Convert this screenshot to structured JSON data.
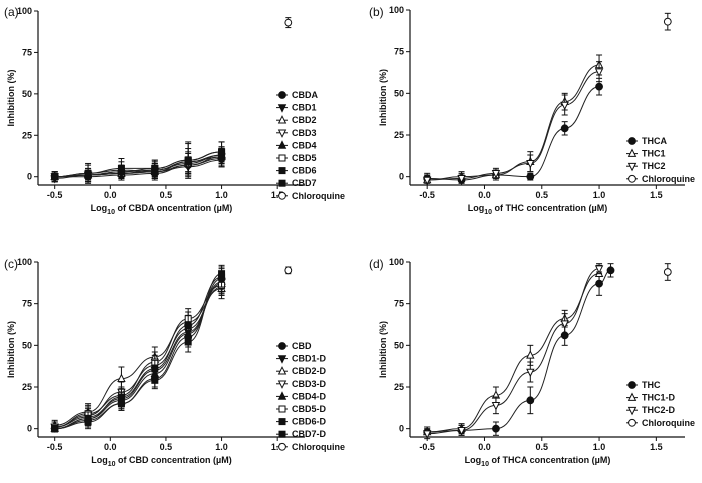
{
  "chart_data": [
    {
      "type": "line",
      "panel": "(a)",
      "title": "",
      "xlabel_prefix": "Log",
      "xlabel_sub": "10",
      "xlabel_suffix": " of  CBDA oncentration (µM)",
      "ylabel": "Inhibition (%)",
      "xlim": [
        -0.65,
        1.75
      ],
      "ylim": [
        -5,
        100
      ],
      "xticks": [
        "-0.5",
        "0.0",
        "0.5",
        "1.0",
        "1.5"
      ],
      "yticks": [
        "0",
        "25",
        "50",
        "75",
        "100"
      ],
      "x": [
        -0.5,
        -0.2,
        0.1,
        0.4,
        0.7,
        1.0
      ],
      "series": [
        {
          "name": "CBDA",
          "marker": "circle-filled",
          "values": [
            0,
            0,
            1,
            2,
            7,
            11
          ],
          "err": [
            2,
            3,
            2,
            3,
            4,
            5
          ]
        },
        {
          "name": "CBD1",
          "marker": "triangle-down-filled",
          "values": [
            0,
            1,
            2,
            3,
            6,
            10
          ],
          "err": [
            2,
            4,
            3,
            4,
            5,
            4
          ]
        },
        {
          "name": "CBD2",
          "marker": "triangle-up-open",
          "values": [
            0,
            1,
            2,
            4,
            8,
            13
          ],
          "err": [
            3,
            3,
            4,
            5,
            6,
            5
          ]
        },
        {
          "name": "CBD3",
          "marker": "triangle-down-open",
          "values": [
            -1,
            1,
            2,
            3,
            7,
            12
          ],
          "err": [
            2,
            3,
            4,
            4,
            5,
            5
          ]
        },
        {
          "name": "CBD4",
          "marker": "triangle-up-filled",
          "values": [
            0,
            2,
            4,
            3,
            9,
            12
          ],
          "err": [
            3,
            5,
            5,
            5,
            8,
            6
          ]
        },
        {
          "name": "CBD5",
          "marker": "square-open",
          "values": [
            0,
            1,
            3,
            5,
            10,
            15
          ],
          "err": [
            3,
            4,
            4,
            5,
            10,
            6
          ]
        },
        {
          "name": "CBD6",
          "marker": "square-filled",
          "values": [
            0,
            1,
            3,
            4,
            9,
            13
          ],
          "err": [
            2,
            3,
            3,
            4,
            6,
            5
          ]
        },
        {
          "name": "CBD7",
          "marker": "square-filled",
          "values": [
            0,
            2,
            5,
            5,
            10,
            15
          ],
          "err": [
            3,
            6,
            6,
            5,
            11,
            6
          ]
        }
      ],
      "reference": {
        "name": "Chloroquine",
        "marker": "circle-open",
        "x": 1.6,
        "value": 93,
        "err": 3
      },
      "legend_position": "right"
    },
    {
      "type": "line",
      "panel": "(b)",
      "title": "",
      "xlabel_prefix": "Log",
      "xlabel_sub": "10",
      "xlabel_suffix": " of  THC concentration (µM)",
      "ylabel": "Inhibition (%)",
      "xlim": [
        -0.65,
        1.75
      ],
      "ylim": [
        -5,
        100
      ],
      "xticks": [
        "-0.5",
        "0.0",
        "0.5",
        "1.0",
        "1.5"
      ],
      "yticks": [
        "0",
        "25",
        "50",
        "75",
        "100"
      ],
      "x": [
        -0.5,
        -0.2,
        0.1,
        0.4,
        0.7,
        1.0
      ],
      "series": [
        {
          "name": "THCA",
          "marker": "circle-filled",
          "values": [
            -1,
            -2,
            1,
            0,
            29,
            54
          ],
          "err": [
            3,
            3,
            2,
            2,
            4,
            5
          ]
        },
        {
          "name": "THC1",
          "marker": "triangle-up-open",
          "values": [
            -2,
            0,
            1,
            9,
            45,
            67
          ],
          "err": [
            3,
            3,
            3,
            6,
            5,
            6
          ]
        },
        {
          "name": "THC2",
          "marker": "triangle-down-open",
          "values": [
            -2,
            -1,
            2,
            8,
            43,
            63
          ],
          "err": [
            3,
            3,
            3,
            5,
            6,
            6
          ]
        }
      ],
      "reference": {
        "name": "Chloroquine",
        "marker": "circle-open",
        "x": 1.6,
        "value": 93,
        "err": 5
      },
      "legend_position": "right"
    },
    {
      "type": "line",
      "panel": "(c)",
      "title": "",
      "xlabel_prefix": "Log",
      "xlabel_sub": "10",
      "xlabel_suffix": " of  CBD concentration (µM)",
      "ylabel": "Inhibition (%)",
      "xlim": [
        -0.65,
        1.75
      ],
      "ylim": [
        -5,
        100
      ],
      "xticks": [
        "-0.5",
        "0.0",
        "0.5",
        "1.0",
        "1.5"
      ],
      "yticks": [
        "0",
        "25",
        "50",
        "75",
        "100"
      ],
      "x": [
        -0.5,
        -0.2,
        0.1,
        0.4,
        0.7,
        1.0
      ],
      "series": [
        {
          "name": "CBD",
          "marker": "circle-filled",
          "values": [
            0,
            5,
            15,
            30,
            55,
            90
          ],
          "err": [
            2,
            4,
            4,
            5,
            6,
            6
          ]
        },
        {
          "name": "CBD1-D",
          "marker": "triangle-down-filled",
          "values": [
            1,
            7,
            18,
            35,
            58,
            88
          ],
          "err": [
            3,
            5,
            5,
            5,
            6,
            6
          ]
        },
        {
          "name": "CBD2-D",
          "marker": "triangle-up-open",
          "values": [
            2,
            10,
            30,
            43,
            64,
            84
          ],
          "err": [
            3,
            5,
            7,
            6,
            6,
            6
          ]
        },
        {
          "name": "CBD3-D",
          "marker": "triangle-down-open",
          "values": [
            1,
            8,
            22,
            38,
            60,
            85
          ],
          "err": [
            3,
            5,
            6,
            6,
            6,
            5
          ]
        },
        {
          "name": "CBD4-D",
          "marker": "triangle-up-filled",
          "values": [
            0,
            6,
            17,
            33,
            57,
            87
          ],
          "err": [
            2,
            4,
            5,
            5,
            6,
            6
          ]
        },
        {
          "name": "CBD5-D",
          "marker": "square-open",
          "values": [
            1,
            9,
            20,
            40,
            66,
            86
          ],
          "err": [
            3,
            5,
            5,
            6,
            6,
            6
          ]
        },
        {
          "name": "CBD6-D",
          "marker": "square-filled",
          "values": [
            0,
            6,
            19,
            36,
            62,
            91
          ],
          "err": [
            2,
            4,
            5,
            5,
            6,
            6
          ]
        },
        {
          "name": "CBD7-D",
          "marker": "square-filled",
          "values": [
            0,
            4,
            15,
            29,
            52,
            93
          ],
          "err": [
            2,
            4,
            4,
            5,
            6,
            5
          ]
        }
      ],
      "reference": {
        "name": "Chloroquine",
        "marker": "circle-open",
        "x": 1.6,
        "value": 95,
        "err": 2
      },
      "legend_position": "right"
    },
    {
      "type": "line",
      "panel": "(d)",
      "title": "",
      "xlabel_prefix": "Log",
      "xlabel_sub": "10",
      "xlabel_suffix": " of  THCA concentration (µM)",
      "ylabel": "Inhibition (%)",
      "xlim": [
        -0.65,
        1.75
      ],
      "ylim": [
        -5,
        100
      ],
      "xticks": [
        "-0.5",
        "0.0",
        "0.5",
        "1.0",
        "1.5"
      ],
      "yticks": [
        "0",
        "25",
        "50",
        "75",
        "100"
      ],
      "x": [
        -0.5,
        -0.2,
        0.1,
        0.4,
        0.7,
        1.0,
        1.1
      ],
      "series": [
        {
          "name": "THC",
          "marker": "circle-filled",
          "values": [
            -2,
            -1,
            0,
            17,
            56,
            87,
            95
          ],
          "err": [
            3,
            3,
            4,
            8,
            6,
            7,
            4
          ]
        },
        {
          "name": "THC1-D",
          "marker": "triangle-up-open",
          "values": [
            -2,
            0,
            20,
            44,
            66,
            93,
            null
          ],
          "err": [
            3,
            3,
            5,
            6,
            5,
            5,
            0
          ]
        },
        {
          "name": "THC2-D",
          "marker": "triangle-down-open",
          "values": [
            -3,
            -1,
            14,
            34,
            63,
            96,
            null
          ],
          "err": [
            3,
            3,
            5,
            6,
            6,
            3,
            0
          ]
        }
      ],
      "reference": {
        "name": "Chloroquine",
        "marker": "circle-open",
        "x": 1.6,
        "value": 94,
        "err": 5
      },
      "legend_position": "right"
    }
  ]
}
